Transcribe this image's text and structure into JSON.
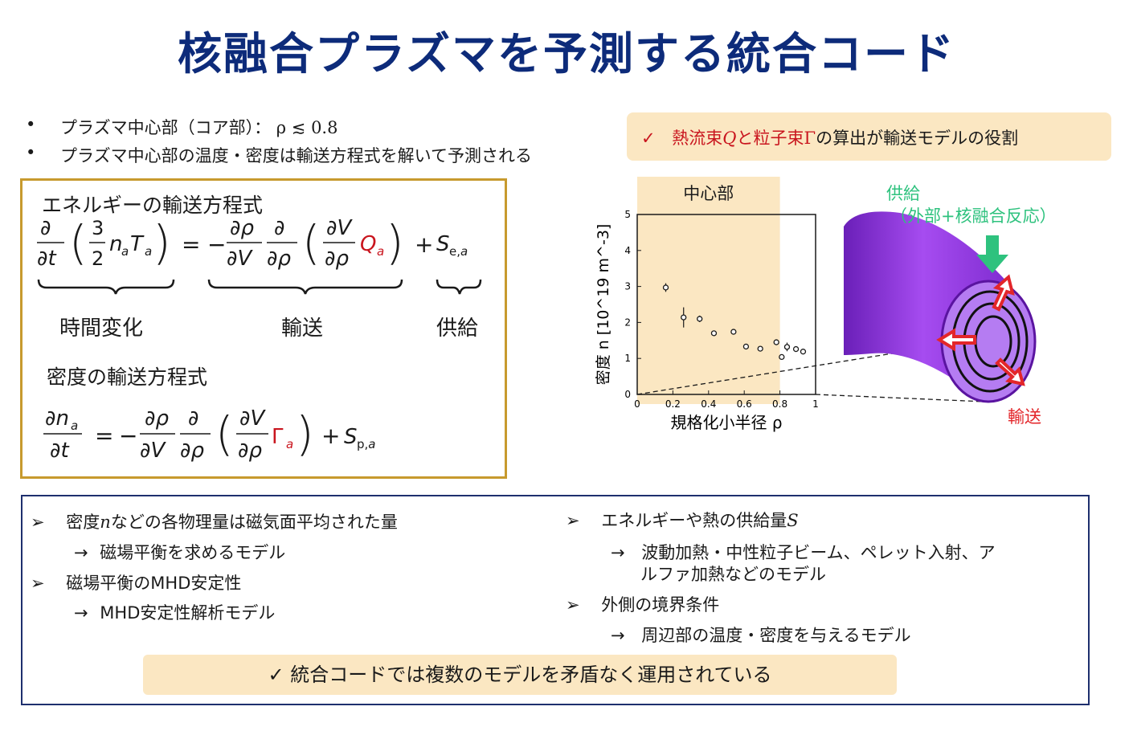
{
  "title": "核融合プラズマを予測する統合コード",
  "bullets": [
    {
      "marker": "•",
      "text": "プラズマ中心部（コア部）：",
      "math": "ρ ≲ 0.8"
    },
    {
      "marker": "•",
      "text": "プラズマ中心部の温度・密度は輸送方程式を解いて予測される"
    }
  ],
  "role_box": {
    "check": "✓",
    "part1": "熱流束",
    "Q": "Q",
    "part2": "と粒子束",
    "Gamma": "Γ",
    "part3": "の算出が輸送モデルの役割"
  },
  "equations": {
    "energy_heading": "エネルギーの輸送方程式",
    "density_heading": "密度の輸送方程式",
    "labels": {
      "time": "時間変化",
      "transport": "輸送",
      "supply": "供給"
    }
  },
  "chart_data": {
    "type": "scatter",
    "title": "",
    "xlabel": "規格化小半径 ρ",
    "ylabel": "密度 n [10^19 m^-3]",
    "xlim": [
      0,
      1
    ],
    "ylim": [
      0,
      5
    ],
    "x_ticks": [
      "0",
      "0.2",
      "0.4",
      "0.6",
      "0.8",
      "1"
    ],
    "y_ticks": [
      "0",
      "1",
      "2",
      "3",
      "4",
      "5"
    ],
    "highlight": {
      "label": "中心部",
      "x_range": [
        0,
        0.8
      ],
      "color": "#fbe7c2"
    },
    "series": [
      {
        "x": [
          0.16,
          0.26,
          0.35,
          0.43,
          0.54,
          0.61,
          0.69,
          0.78,
          0.81,
          0.84,
          0.89,
          0.93
        ],
        "y": [
          2.97,
          2.14,
          2.1,
          1.7,
          1.74,
          1.33,
          1.27,
          1.45,
          1.04,
          1.32,
          1.26,
          1.19
        ],
        "err": [
          0.12,
          0.28,
          0.09,
          0.07,
          0.07,
          0.07,
          0.07,
          0.08,
          0.07,
          0.12,
          0.07,
          0.07
        ]
      }
    ]
  },
  "diagram": {
    "supply_label": "供給",
    "supply_detail": "（外部+核融合反応）",
    "transport_label": "輸送",
    "colors": {
      "plasma": "#9b3fe0",
      "supply_arrow": "#2ec27e",
      "transport_arrow": "#e3262a"
    }
  },
  "bottom_box": {
    "left": [
      {
        "marker": "➢",
        "pre": "密度",
        "math": "n",
        "post": "などの各物理量は磁気面平均された量"
      },
      {
        "marker": "→",
        "text": "磁場平衡を求めるモデル"
      },
      {
        "marker": "➢",
        "text": "磁場平衡のMHD安定性"
      },
      {
        "marker": "→",
        "text": "MHD安定性解析モデル"
      }
    ],
    "right": [
      {
        "marker": "➢",
        "pre": "エネルギーや熱の供給量",
        "math": "S"
      },
      {
        "marker": "→",
        "text": "波動加熱・中性粒子ビーム、ペレット入射、ア",
        "text2": "ルファ加熱などのモデル"
      },
      {
        "marker": "➢",
        "text": "外側の境界条件"
      },
      {
        "marker": "→",
        "text": "周辺部の温度・密度を与えるモデル"
      }
    ],
    "conclusion": "✓ 統合コードでは複数のモデルを矛盾なく運用されている"
  }
}
